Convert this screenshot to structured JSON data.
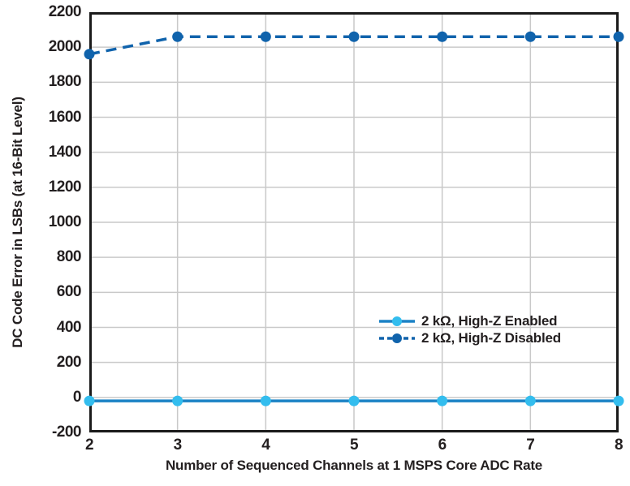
{
  "chart_data": {
    "type": "line",
    "title": "",
    "xlabel": "Number of Sequenced Channels at 1 MSPS Core ADC Rate",
    "ylabel": "DC Code Error in LSBs (at 16-Bit Level)",
    "xlim": [
      2,
      8
    ],
    "ylim": [
      -200,
      2200
    ],
    "xticks": [
      2,
      3,
      4,
      5,
      6,
      7,
      8
    ],
    "yticks": [
      -200,
      0,
      200,
      400,
      600,
      800,
      1000,
      1200,
      1400,
      1600,
      1800,
      2000,
      2200
    ],
    "grid": true,
    "legend_position": "inside right, below middle",
    "x": [
      2,
      3,
      4,
      5,
      6,
      7,
      8
    ],
    "series": [
      {
        "name": "2 kΩ, High-Z Enabled",
        "values": [
          -20,
          -20,
          -20,
          -20,
          -20,
          -20,
          -20
        ],
        "line_style": "solid",
        "line_color": "#1b82c5",
        "marker_color": "#33bdee",
        "marker": "circle"
      },
      {
        "name": "2 kΩ, High-Z Disabled",
        "values": [
          1960,
          2060,
          2060,
          2060,
          2060,
          2060,
          2060
        ],
        "line_style": "dashed",
        "line_color": "#1063ac",
        "marker_color": "#1063ac",
        "marker": "circle"
      }
    ],
    "colors": {
      "background": "#ffffff",
      "axis": "#1a1a1a",
      "grid": "#c9c9c9",
      "text": "#231f20"
    }
  }
}
